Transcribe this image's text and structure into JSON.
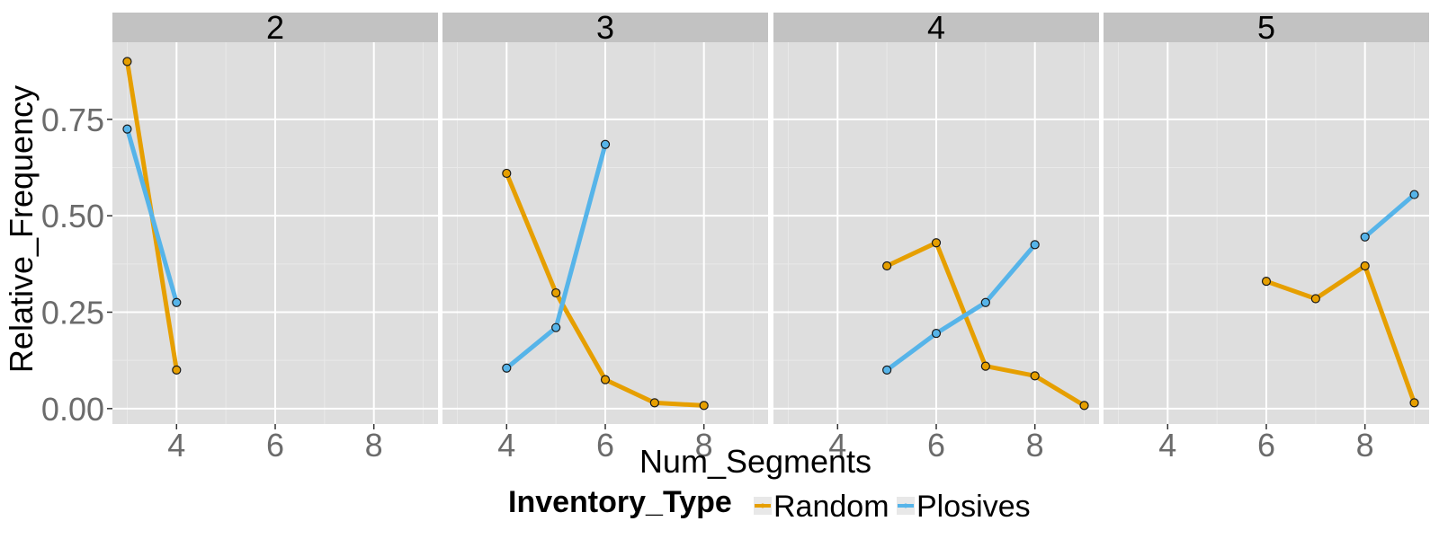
{
  "chart_data": {
    "type": "line",
    "facet_variable": "Num_Segments_Facet",
    "panels": [
      {
        "label": "2",
        "series": [
          {
            "name": "Random",
            "x": [
              3,
              4
            ],
            "y": [
              0.9,
              0.1
            ]
          },
          {
            "name": "Plosives",
            "x": [
              3,
              4
            ],
            "y": [
              0.725,
              0.275
            ]
          }
        ]
      },
      {
        "label": "3",
        "series": [
          {
            "name": "Random",
            "x": [
              4,
              5,
              6,
              7,
              8
            ],
            "y": [
              0.61,
              0.3,
              0.075,
              0.015,
              0.008
            ]
          },
          {
            "name": "Plosives",
            "x": [
              4,
              5,
              6
            ],
            "y": [
              0.105,
              0.21,
              0.685
            ]
          }
        ]
      },
      {
        "label": "4",
        "series": [
          {
            "name": "Random",
            "x": [
              5,
              6,
              7,
              8,
              9
            ],
            "y": [
              0.37,
              0.43,
              0.11,
              0.085,
              0.008
            ]
          },
          {
            "name": "Plosives",
            "x": [
              5,
              6,
              7,
              8
            ],
            "y": [
              0.1,
              0.195,
              0.275,
              0.425
            ]
          }
        ]
      },
      {
        "label": "5",
        "series": [
          {
            "name": "Random",
            "x": [
              6,
              7,
              8,
              9
            ],
            "y": [
              0.33,
              0.285,
              0.37,
              0.015
            ]
          },
          {
            "name": "Plosives",
            "x": [
              8,
              9
            ],
            "y": [
              0.445,
              0.555
            ]
          }
        ]
      }
    ],
    "x_ticks": [
      "4",
      "6",
      "8"
    ],
    "x_tick_values": [
      4,
      6,
      8
    ],
    "y_ticks": [
      "0.00",
      "0.25",
      "0.50",
      "0.75"
    ],
    "y_tick_values": [
      0,
      0.25,
      0.5,
      0.75
    ],
    "xlim": [
      2.7,
      9.3
    ],
    "ylim": [
      -0.04,
      0.95
    ],
    "xlabel": "Num_Segments",
    "ylabel": "Relative_Frequency",
    "legend": {
      "title": "Inventory_Type",
      "placement": "bottom",
      "entries": [
        "Random",
        "Plosives"
      ]
    },
    "colors": {
      "Random": "#E69F00",
      "Plosives": "#56B4E9",
      "panel_background": "#DEDEDE",
      "strip_background": "#C2C2C2",
      "grid": "#FFFFFF"
    },
    "grid": true
  }
}
